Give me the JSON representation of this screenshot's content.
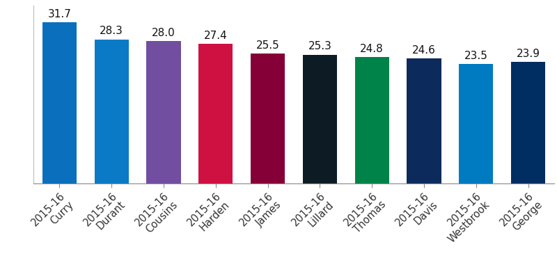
{
  "chart_data": {
    "type": "bar",
    "categories": [
      "2015-16\nCurry",
      "2015-16\nDurant",
      "2015-16\nCousins",
      "2015-16\nHarden",
      "2015-16\nJames",
      "2015-16\nLillard",
      "2015-16\nThomas",
      "2015-16\nDavis",
      "2015-16\nWestbrook",
      "2015-16\nGeorge"
    ],
    "values": [
      31.7,
      28.3,
      28.0,
      27.4,
      25.5,
      25.3,
      24.8,
      24.6,
      23.5,
      23.9
    ],
    "value_labels": [
      "31.7",
      "28.3",
      "28.0",
      "27.4",
      "25.5",
      "25.3",
      "24.8",
      "24.6",
      "23.5",
      "23.9"
    ],
    "colors": [
      "#0a6fbd",
      "#0a7ac6",
      "#724ea0",
      "#ce1141",
      "#860038",
      "#0d1b24",
      "#008348",
      "#0c2a5b",
      "#007ac1",
      "#002d62"
    ],
    "ylim": [
      0,
      35
    ],
    "yticks": [],
    "grid": false,
    "data_labels": true,
    "tick_labels": "x"
  }
}
